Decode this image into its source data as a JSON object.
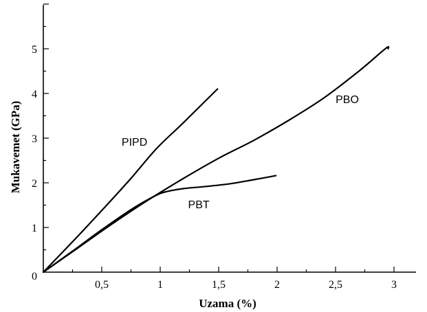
{
  "chart_data": {
    "type": "line",
    "xlabel": "Uzama (%)",
    "ylabel": "Mukavemet (GPa)",
    "xlim": [
      0,
      3.2
    ],
    "ylim": [
      0,
      6
    ],
    "x_ticks": [
      {
        "value": 0.5,
        "label": "0,5"
      },
      {
        "value": 1,
        "label": "1"
      },
      {
        "value": 1.5,
        "label": "1,5"
      },
      {
        "value": 2,
        "label": "2"
      },
      {
        "value": 2.5,
        "label": "2,5"
      },
      {
        "value": 3,
        "label": "3"
      }
    ],
    "y_ticks": [
      {
        "value": 0,
        "label": "0"
      },
      {
        "value": 1,
        "label": "1"
      },
      {
        "value": 2,
        "label": "2"
      },
      {
        "value": 3,
        "label": "3"
      },
      {
        "value": 4,
        "label": "4"
      },
      {
        "value": 5,
        "label": "5"
      }
    ],
    "grid": false,
    "legend": "none",
    "series": [
      {
        "name": "PIPD",
        "label_at": [
          0.78,
          2.92
        ],
        "points": [
          [
            0,
            0
          ],
          [
            0.25,
            0.68
          ],
          [
            0.5,
            1.38
          ],
          [
            0.75,
            2.1
          ],
          [
            0.97,
            2.77
          ],
          [
            1.2,
            3.35
          ],
          [
            1.49,
            4.1
          ]
        ]
      },
      {
        "name": "PBO",
        "label_at": [
          2.6,
          3.88
        ],
        "points": [
          [
            0,
            0
          ],
          [
            0.3,
            0.55
          ],
          [
            0.6,
            1.1
          ],
          [
            0.9,
            1.62
          ],
          [
            1.2,
            2.1
          ],
          [
            1.5,
            2.55
          ],
          [
            1.8,
            2.95
          ],
          [
            2.1,
            3.4
          ],
          [
            2.4,
            3.9
          ],
          [
            2.7,
            4.5
          ],
          [
            2.93,
            5.01
          ],
          [
            2.95,
            5.0
          ]
        ]
      },
      {
        "name": "PBT",
        "label_at": [
          1.33,
          1.52
        ],
        "points": [
          [
            0,
            0
          ],
          [
            0.25,
            0.47
          ],
          [
            0.5,
            0.95
          ],
          [
            0.75,
            1.4
          ],
          [
            0.95,
            1.7
          ],
          [
            1.05,
            1.8
          ],
          [
            1.2,
            1.87
          ],
          [
            1.4,
            1.92
          ],
          [
            1.6,
            1.98
          ],
          [
            1.8,
            2.07
          ],
          [
            1.99,
            2.16
          ]
        ]
      }
    ]
  }
}
